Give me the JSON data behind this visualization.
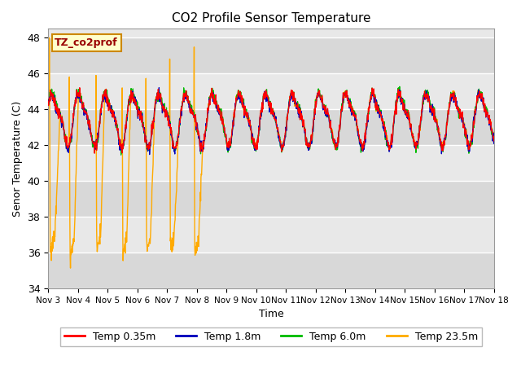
{
  "title": "CO2 Profile Sensor Temperature",
  "xlabel": "Time",
  "ylabel": "Senor Temperature (C)",
  "ylim": [
    34,
    48.5
  ],
  "yticks": [
    34,
    36,
    38,
    40,
    42,
    44,
    46,
    48
  ],
  "line_colors": {
    "temp035": "#ff0000",
    "temp18": "#0000bb",
    "temp60": "#00bb00",
    "temp235": "#ffaa00"
  },
  "legend_labels": [
    "Temp 0.35m",
    "Temp 1.8m",
    "Temp 6.0m",
    "Temp 23.5m"
  ],
  "annotation_text": "TZ_co2prof",
  "annotation_color": "#990000",
  "annotation_bg": "#ffffcc",
  "annotation_border": "#cc8800",
  "background_color": "#ffffff",
  "plot_bg_color": "#e8e8e8",
  "band_color": "#d8d8d8",
  "grid_color": "#ffffff",
  "xtick_labels": [
    "Nov 3",
    "Nov 4",
    "Nov 5",
    "Nov 6",
    "Nov 7",
    "Nov 8",
    "Nov 9",
    "Nov 10",
    "Nov 11",
    "Nov 12",
    "Nov 13",
    "Nov 14",
    "Nov 15",
    "Nov 16",
    "Nov 17",
    "Nov 18"
  ]
}
